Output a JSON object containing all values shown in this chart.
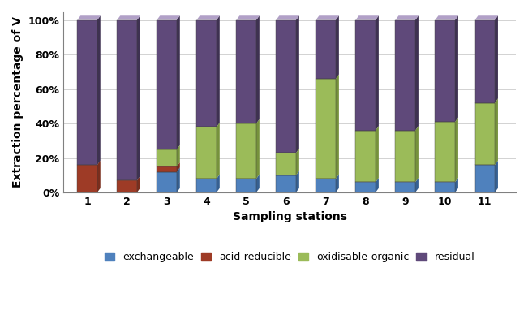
{
  "stations": [
    "1",
    "2",
    "3",
    "4",
    "5",
    "6",
    "7",
    "8",
    "9",
    "10",
    "11"
  ],
  "exchangeable": [
    0,
    0,
    12,
    8,
    8,
    10,
    8,
    6,
    6,
    6,
    16
  ],
  "acid_reducible": [
    16,
    7,
    3,
    0,
    0,
    0,
    0,
    0,
    0,
    0,
    0
  ],
  "oxidisable_organic": [
    0,
    0,
    10,
    30,
    32,
    13,
    58,
    30,
    30,
    35,
    36
  ],
  "residual": [
    84,
    93,
    75,
    62,
    60,
    77,
    34,
    64,
    64,
    59,
    48
  ],
  "colors": {
    "exchangeable": "#4F81BD",
    "acid_reducible": "#9E3B26",
    "oxidisable_organic": "#9BBB59",
    "residual": "#5F497A"
  },
  "colors_side": {
    "exchangeable": "#366092",
    "acid_reducible": "#7A2E1D",
    "oxidisable_organic": "#76923C",
    "residual": "#3E3151"
  },
  "colors_top": {
    "exchangeable": "#95B3D7",
    "acid_reducible": "#C77F6C",
    "oxidisable_organic": "#C4D79B",
    "residual": "#B1A0C7"
  },
  "ylabel": "Extraction percentage of V",
  "xlabel": "Sampling stations",
  "legend_labels": [
    "exchangeable",
    "acid-reducible",
    "oxidisable-organic",
    "residual"
  ],
  "yticks": [
    0,
    20,
    40,
    60,
    80,
    100
  ],
  "ytick_labels": [
    "0%",
    "20%",
    "40%",
    "60%",
    "80%",
    "100%"
  ],
  "bg_color": "#FFFFFF",
  "plot_bg_color": "#FFFFFF"
}
